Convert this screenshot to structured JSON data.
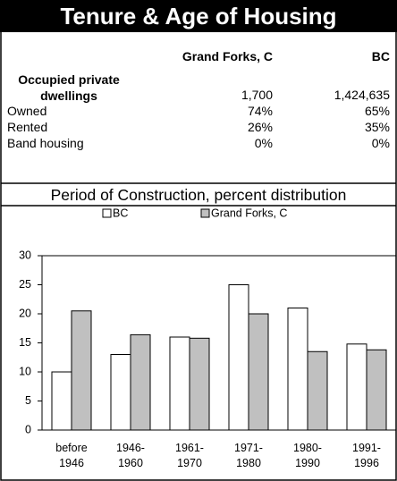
{
  "header": {
    "title": "Tenure & Age of Housing"
  },
  "table": {
    "columns": [
      "Grand Forks, C",
      "BC"
    ],
    "rows": [
      {
        "label": "Occupied private dwellings",
        "values": [
          "1,700",
          "1,424,635"
        ]
      },
      {
        "label": "Owned",
        "values": [
          "74%",
          "65%"
        ]
      },
      {
        "label": "Rented",
        "values": [
          "26%",
          "35%"
        ]
      },
      {
        "label": "Band housing",
        "values": [
          "0%",
          "0%"
        ]
      }
    ]
  },
  "chart_data": {
    "type": "bar",
    "title": "Period of Construction, percent distribution",
    "categories": [
      "before 1946",
      "1946-1960",
      "1961-1970",
      "1971-1980",
      "1980-1990",
      "1991-1996"
    ],
    "series": [
      {
        "name": "BC",
        "color": "#ffffff",
        "values": [
          10,
          13,
          16,
          25,
          21,
          14.8
        ]
      },
      {
        "name": "Grand Forks, C",
        "color": "#c0c0c0",
        "values": [
          20.5,
          16.4,
          15.8,
          20,
          13.5,
          13.8
        ]
      }
    ],
    "ylim": [
      0,
      30
    ],
    "yticks": [
      0,
      5,
      10,
      15,
      20,
      25,
      30
    ],
    "grid": false,
    "legend": "top"
  }
}
